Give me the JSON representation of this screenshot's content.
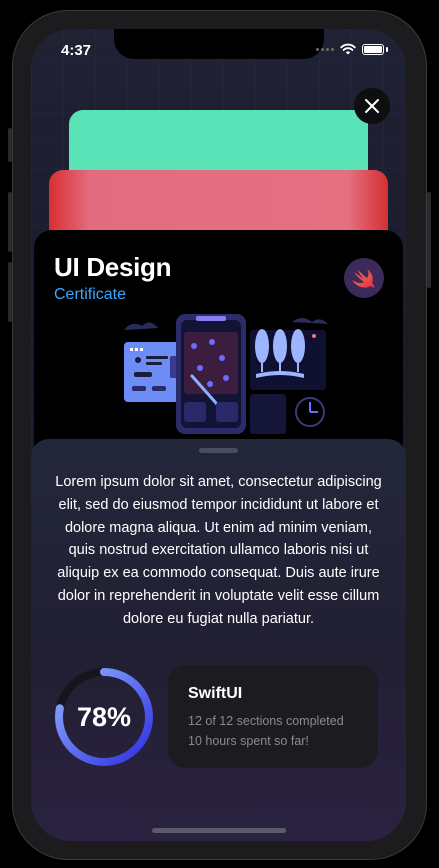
{
  "status_bar": {
    "time": "4:37"
  },
  "card": {
    "title": "UI Design",
    "subtitle": "Certificate"
  },
  "description": "Lorem ipsum dolor sit amet, consectetur adipiscing elit, sed do eiusmod tempor incididunt ut labore et dolore magna aliqua. Ut enim ad minim veniam, quis nostrud exercitation ullamco laboris nisi ut aliquip ex ea commodo consequat. Duis aute irure dolor in reprehenderit in voluptate velit esse cillum dolore eu fugiat nulla pariatur.",
  "progress": {
    "label": "78%",
    "fraction": 0.78
  },
  "course": {
    "title": "SwiftUI",
    "sections": "12 of 12 sections completed",
    "hours": "10 hours spent so far!"
  },
  "colors": {
    "accent": "#3aa6ff",
    "card_teal": "#5be3b8",
    "card_red": "#e57082",
    "ring_start": "#2f2de0",
    "ring_end": "#8fb3ff"
  },
  "icons": [
    "close-icon",
    "wifi-icon",
    "battery-icon",
    "swift-logo-icon"
  ]
}
